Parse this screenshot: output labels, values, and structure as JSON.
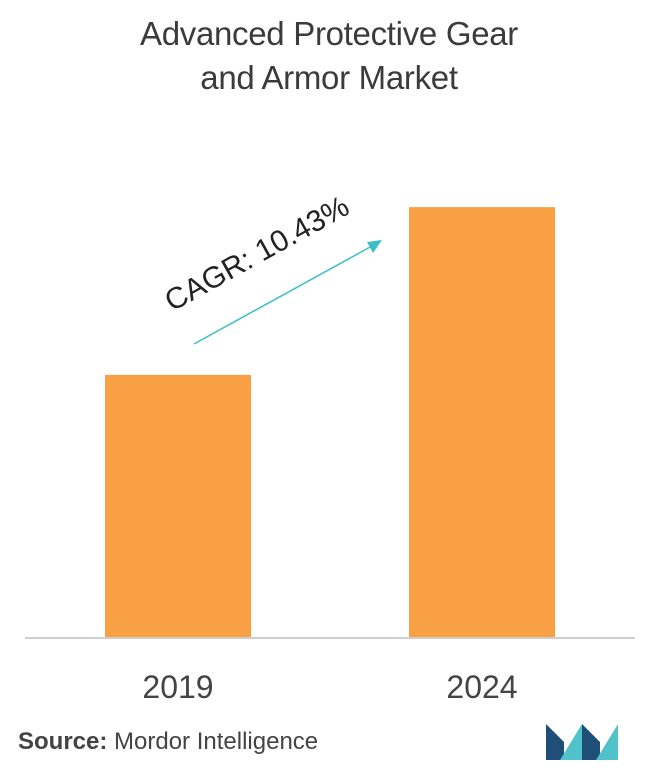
{
  "chart_data": {
    "type": "bar",
    "title_lines": [
      "Advanced Protective Gear",
      "and Armor Market"
    ],
    "categories": [
      "2019",
      "2024"
    ],
    "values": [
      1.0,
      1.64
    ],
    "ylim": [
      0,
      1.9
    ],
    "grid": false,
    "bar_color": "#f9a044",
    "annotation": "CAGR: 10.43%",
    "arrow_color": "#3bbfc5"
  },
  "source": {
    "label": "Source:",
    "text": "Mordor Intelligence"
  },
  "logo": {
    "icon": "mordor-intelligence-logo",
    "colors": [
      "#1f4e79",
      "#4fc3c9"
    ]
  }
}
